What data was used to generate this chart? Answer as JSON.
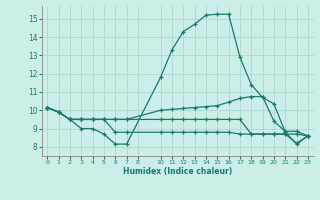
{
  "title": "",
  "xlabel": "Humidex (Indice chaleur)",
  "background_color": "#cceee8",
  "grid_color": "#aad8d0",
  "line_color": "#1a7a6a",
  "xlim": [
    -0.5,
    23.5
  ],
  "ylim": [
    7.5,
    15.7
  ],
  "yticks": [
    8,
    9,
    10,
    11,
    12,
    13,
    14,
    15
  ],
  "xticks": [
    0,
    1,
    2,
    3,
    4,
    5,
    6,
    7,
    8,
    10,
    11,
    12,
    13,
    14,
    15,
    16,
    17,
    18,
    19,
    20,
    21,
    22,
    23
  ],
  "line1_x": [
    0,
    1,
    2,
    3,
    4,
    5,
    6,
    7,
    10,
    11,
    12,
    13,
    14,
    15,
    16,
    17,
    18,
    19,
    20,
    21,
    22,
    23
  ],
  "line1_y": [
    10.15,
    9.9,
    9.5,
    9.0,
    9.0,
    8.7,
    8.15,
    8.15,
    11.8,
    13.3,
    14.3,
    14.7,
    15.2,
    15.25,
    15.25,
    12.9,
    11.4,
    10.7,
    10.35,
    8.8,
    8.15,
    8.6
  ],
  "line2_x": [
    0,
    1,
    2,
    3,
    4,
    5,
    6,
    7,
    10,
    11,
    12,
    13,
    14,
    15,
    16,
    17,
    18,
    19,
    20,
    21,
    22,
    23
  ],
  "line2_y": [
    10.15,
    9.9,
    9.5,
    9.5,
    9.5,
    9.5,
    9.5,
    9.5,
    10.0,
    10.05,
    10.1,
    10.15,
    10.2,
    10.25,
    10.45,
    10.65,
    10.75,
    10.75,
    9.4,
    8.85,
    8.85,
    8.6
  ],
  "line3_x": [
    0,
    1,
    2,
    3,
    4,
    5,
    6,
    7,
    10,
    11,
    12,
    13,
    14,
    15,
    16,
    17,
    18,
    19,
    20,
    21,
    22,
    23
  ],
  "line3_y": [
    10.15,
    9.9,
    9.5,
    9.5,
    9.5,
    9.5,
    9.5,
    9.5,
    9.5,
    9.5,
    9.5,
    9.5,
    9.5,
    9.5,
    9.5,
    9.5,
    8.7,
    8.7,
    8.7,
    8.7,
    8.7,
    8.6
  ],
  "line4_x": [
    0,
    1,
    2,
    3,
    4,
    5,
    6,
    7,
    10,
    11,
    12,
    13,
    14,
    15,
    16,
    17,
    18,
    19,
    20,
    21,
    22,
    23
  ],
  "line4_y": [
    10.15,
    9.9,
    9.5,
    9.5,
    9.5,
    9.5,
    8.8,
    8.8,
    8.8,
    8.8,
    8.8,
    8.8,
    8.8,
    8.8,
    8.8,
    8.7,
    8.7,
    8.7,
    8.7,
    8.7,
    8.2,
    8.6
  ]
}
